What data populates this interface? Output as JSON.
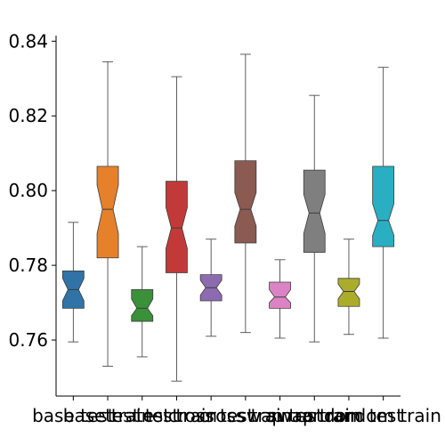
{
  "chart_data": {
    "type": "box",
    "title": "",
    "xlabel": "",
    "ylabel": "",
    "ylim": [
      0.745,
      0.8415
    ],
    "yticks": [
      0.76,
      0.78,
      0.8,
      0.82,
      0.84
    ],
    "ytick_labels": [
      "0.76",
      "0.78",
      "0.80",
      "0.82",
      "0.84"
    ],
    "notched": true,
    "grid": false,
    "legend": "none",
    "categories": [
      "base test",
      "base train",
      "test test",
      "test train",
      "cross test",
      "cross train",
      "swap test",
      "swap train",
      "random test",
      "random train"
    ],
    "boxes": [
      {
        "label": "base test",
        "color": "#2f73a7",
        "whisker_low": 0.7595,
        "q1": 0.7685,
        "median": 0.7735,
        "q3": 0.7785,
        "whisker_high": 0.7915,
        "notch_low": 0.7705,
        "notch_high": 0.7765
      },
      {
        "label": "base train",
        "color": "#e5812a",
        "whisker_low": 0.753,
        "q1": 0.782,
        "median": 0.795,
        "q3": 0.8065,
        "whisker_high": 0.8345,
        "notch_low": 0.7885,
        "notch_high": 0.8015
      },
      {
        "label": "test test",
        "color": "#3a913a",
        "whisker_low": 0.7555,
        "q1": 0.765,
        "median": 0.7685,
        "q3": 0.7735,
        "whisker_high": 0.785,
        "notch_low": 0.7665,
        "notch_high": 0.771
      },
      {
        "label": "test train",
        "color": "#c13a39",
        "whisker_low": 0.749,
        "q1": 0.778,
        "median": 0.79,
        "q3": 0.8025,
        "whisker_high": 0.8305,
        "notch_low": 0.7845,
        "notch_high": 0.7955
      },
      {
        "label": "cross test",
        "color": "#8c6bb1",
        "whisker_low": 0.761,
        "q1": 0.7705,
        "median": 0.774,
        "q3": 0.7775,
        "whisker_high": 0.787,
        "notch_low": 0.772,
        "notch_high": 0.776
      },
      {
        "label": "cross train",
        "color": "#8b5a50",
        "whisker_low": 0.762,
        "q1": 0.786,
        "median": 0.795,
        "q3": 0.808,
        "whisker_high": 0.8365,
        "notch_low": 0.7905,
        "notch_high": 0.7995
      },
      {
        "label": "swap test",
        "color": "#dc83c5",
        "whisker_low": 0.7605,
        "q1": 0.7685,
        "median": 0.7715,
        "q3": 0.7755,
        "whisker_high": 0.7815,
        "notch_low": 0.77,
        "notch_high": 0.7735
      },
      {
        "label": "swap train",
        "color": "#7f7f7f",
        "whisker_low": 0.7595,
        "q1": 0.7835,
        "median": 0.794,
        "q3": 0.8055,
        "whisker_high": 0.8255,
        "notch_low": 0.7885,
        "notch_high": 0.799
      },
      {
        "label": "random test",
        "color": "#acac2b",
        "whisker_low": 0.7615,
        "q1": 0.769,
        "median": 0.773,
        "q3": 0.7765,
        "whisker_high": 0.787,
        "notch_low": 0.771,
        "notch_high": 0.775
      },
      {
        "label": "random train",
        "color": "#2aaec2",
        "whisker_low": 0.7605,
        "q1": 0.785,
        "median": 0.792,
        "q3": 0.8065,
        "whisker_high": 0.833,
        "notch_low": 0.788,
        "notch_high": 0.7965
      }
    ]
  }
}
